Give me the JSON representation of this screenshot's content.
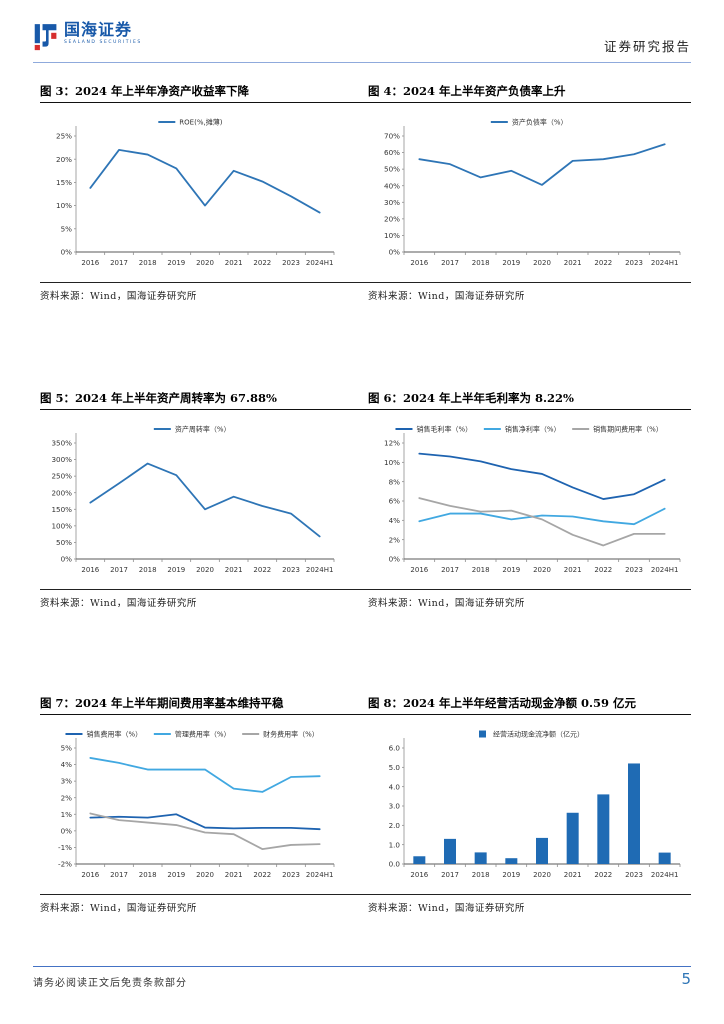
{
  "header": {
    "brand_name": "国海证券",
    "brand_subtitle": "SEALAND SECURITIES",
    "report_label": "证券研究报告"
  },
  "footer": {
    "disclaimer": "请务必阅读正文后免责条款部分",
    "page_number": "5"
  },
  "figures": [
    {
      "title": "图 3：2024 年上半年净资产收益率下降",
      "source": "资料来源：Wind，国海证券研究所"
    },
    {
      "title": "图 4：2024 年上半年资产负债率上升",
      "source": "资料来源：Wind，国海证券研究所"
    },
    {
      "title": "图 5：2024 年上半年资产周转率为 67.88%",
      "source": "资料来源：Wind，国海证券研究所"
    },
    {
      "title": "图 6：2024 年上半年毛利率为 8.22%",
      "source": "资料来源：Wind，国海证券研究所"
    },
    {
      "title": "图 7：2024 年上半年期间费用率基本维持平稳",
      "source": "资料来源：Wind，国海证券研究所"
    },
    {
      "title": "图 8：2024 年上半年经营活动现金净额 0.59 亿元",
      "source": "资料来源：Wind，国海证券研究所"
    }
  ],
  "chart_data": [
    {
      "type": "line",
      "title": "图 3：2024 年上半年净资产收益率下降",
      "categories": [
        "2016",
        "2017",
        "2018",
        "2019",
        "2020",
        "2021",
        "2022",
        "2023",
        "2024H1"
      ],
      "series": [
        {
          "name": "ROE(%,摊薄)",
          "color": "#2E75B6",
          "values": [
            13.8,
            22.0,
            21.0,
            18.0,
            10.0,
            17.5,
            15.2,
            12.0,
            8.5
          ]
        }
      ],
      "ylim": [
        0,
        25
      ],
      "ystep": 5,
      "yfmt": "pct",
      "legend_position": "top-center",
      "grid": false
    },
    {
      "type": "line",
      "title": "图 4：2024 年上半年资产负债率上升",
      "categories": [
        "2016",
        "2017",
        "2018",
        "2019",
        "2020",
        "2021",
        "2022",
        "2023",
        "2024H1"
      ],
      "series": [
        {
          "name": "资产负债率（%）",
          "color": "#2E75B6",
          "values": [
            56,
            53,
            45,
            49,
            40.5,
            55,
            56,
            59,
            65
          ]
        }
      ],
      "ylim": [
        0,
        70
      ],
      "ystep": 10,
      "yfmt": "pct",
      "legend_position": "top-center",
      "grid": false
    },
    {
      "type": "line",
      "title": "图 5：2024 年上半年资产周转率为 67.88%",
      "categories": [
        "2016",
        "2017",
        "2018",
        "2019",
        "2020",
        "2021",
        "2022",
        "2023",
        "2024H1"
      ],
      "series": [
        {
          "name": "资产周转率（%）",
          "color": "#2E75B6",
          "values": [
            170,
            228,
            288,
            253,
            150,
            188,
            160,
            137,
            68
          ]
        }
      ],
      "ylim": [
        0,
        350
      ],
      "ystep": 50,
      "yfmt": "pct",
      "legend_position": "top-center",
      "grid": false
    },
    {
      "type": "line",
      "title": "图 6：2024 年上半年毛利率为 8.22%",
      "categories": [
        "2016",
        "2017",
        "2018",
        "2019",
        "2020",
        "2021",
        "2022",
        "2023",
        "2024H1"
      ],
      "series": [
        {
          "name": "销售毛利率（%）",
          "color": "#1E63B0",
          "values": [
            10.9,
            10.6,
            10.1,
            9.3,
            8.8,
            7.4,
            6.2,
            6.7,
            8.2
          ]
        },
        {
          "name": "销售净利率（%）",
          "color": "#41A8E1",
          "values": [
            3.9,
            4.7,
            4.7,
            4.1,
            4.5,
            4.4,
            3.9,
            3.6,
            5.2
          ]
        },
        {
          "name": "销售期间费用率（%）",
          "color": "#A6A6A6",
          "values": [
            6.3,
            5.5,
            4.9,
            5.0,
            4.1,
            2.5,
            1.4,
            2.6,
            2.6
          ]
        }
      ],
      "ylim": [
        0,
        12
      ],
      "ystep": 2,
      "yfmt": "pct",
      "legend_position": "top-row",
      "grid": false
    },
    {
      "type": "line",
      "title": "图 7：2024 年上半年期间费用率基本维持平稳",
      "categories": [
        "2016",
        "2017",
        "2018",
        "2019",
        "2020",
        "2021",
        "2022",
        "2023",
        "2024H1"
      ],
      "series": [
        {
          "name": "销售费用率（%）",
          "color": "#1E63B0",
          "values": [
            0.8,
            0.85,
            0.8,
            1.0,
            0.2,
            0.15,
            0.18,
            0.18,
            0.1
          ]
        },
        {
          "name": "管理费用率（%）",
          "color": "#41A8E1",
          "values": [
            4.4,
            4.1,
            3.7,
            3.7,
            3.7,
            2.55,
            2.35,
            3.25,
            3.3
          ]
        },
        {
          "name": "财务费用率（%）",
          "color": "#A6A6A6",
          "values": [
            1.05,
            0.65,
            0.5,
            0.35,
            -0.1,
            -0.2,
            -1.1,
            -0.85,
            -0.8
          ]
        }
      ],
      "ylim": [
        -2,
        5
      ],
      "ystep": 1,
      "yfmt": "pct",
      "legend_position": "top-row",
      "grid": false
    },
    {
      "type": "bar",
      "title": "图 8：2024 年上半年经营活动现金净额 0.59 亿元",
      "categories": [
        "2016",
        "2017",
        "2018",
        "2019",
        "2020",
        "2021",
        "2022",
        "2023",
        "2024H1"
      ],
      "series": [
        {
          "name": "经营活动现金流净额（亿元）",
          "color": "#1F6BB4",
          "values": [
            0.4,
            1.3,
            0.6,
            0.3,
            1.35,
            2.65,
            3.6,
            5.2,
            0.59
          ]
        }
      ],
      "ylim": [
        0,
        6
      ],
      "ystep": 1,
      "yfmt": "dec1",
      "legend_position": "top-center",
      "grid": false
    }
  ],
  "colors": {
    "primary_blue": "#2E75B6",
    "dark_blue": "#1E63B0",
    "light_blue": "#41A8E1",
    "gray": "#A6A6A6",
    "bar_blue": "#1F6BB4",
    "header_rule": "#8FAADC",
    "footer_rule": "#4472C4",
    "brand_blue": "#1859A9",
    "brand_red": "#D62E2E"
  }
}
